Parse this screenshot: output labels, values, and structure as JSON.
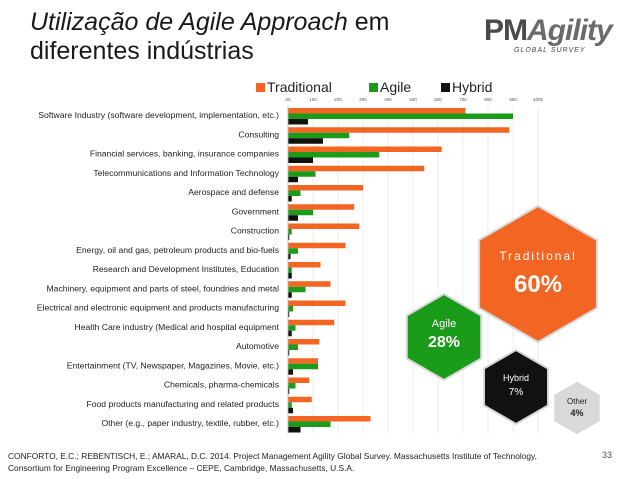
{
  "slide": {
    "title_italic": "Utilização de Agile Approach",
    "title_rest_line1": " em",
    "title_line2": "diferentes indústrias",
    "logo_pm": "PM",
    "logo_agility": "Agility",
    "logo_sub": "GLOBAL SURVEY",
    "footer_line1": "CONFORTO, E.C.; REBENTISCH, E.; AMARAL, D.C. 2014. Project Management Agility Global Survey. Massachusetts Institute of Technology,",
    "footer_line2": "Consortium for Engineering Program Excellence – CEPE, Cambridge, Massachusetts, U.S.A.",
    "page_number": "33"
  },
  "chart_data": [
    {
      "type": "bar",
      "orientation": "horizontal",
      "categories": [
        "Software Industry (software development, implementation, etc.)",
        "Consulting",
        "Financial services, banking, insurance companies",
        "Telecommunications and Information Technology",
        "Aerospace and defense",
        "Government",
        "Construction",
        "Energy, oil and gas, petroleum products and bio-fuels",
        "Research and Development Institutes, Education",
        "Machinery, equipment and parts of steel, foundries and metal",
        "Electrical and electronic equipment and products manufacturing",
        "Health Care industry (Medical and hospital equipment",
        "Automotive",
        "Entertainment (TV, Newspaper, Magazines, Movie, etc.)",
        "Chemicals, pharma-chemicals",
        "Food products manufacturing and related products",
        "Other (e.g., paper industry, textile, rubber, etc.)"
      ],
      "series": [
        {
          "name": "Traditional",
          "color": "#f26522",
          "values": [
            710,
            885,
            615,
            545,
            300,
            265,
            285,
            230,
            130,
            170,
            230,
            185,
            125,
            120,
            85,
            95,
            330
          ]
        },
        {
          "name": "Agile",
          "color": "#1a9b1a",
          "values": [
            900,
            245,
            365,
            110,
            50,
            100,
            15,
            40,
            15,
            70,
            20,
            30,
            40,
            120,
            30,
            15,
            170
          ]
        },
        {
          "name": "Hybrid",
          "color": "#111111",
          "values": [
            80,
            140,
            100,
            40,
            15,
            40,
            5,
            10,
            15,
            15,
            5,
            15,
            5,
            20,
            5,
            20,
            50
          ]
        }
      ],
      "xlim": [
        0,
        1000
      ],
      "x_ticks": [
        "00",
        "100",
        "200",
        "300",
        "400",
        "500",
        "600",
        "700",
        "800",
        "900",
        "1000"
      ],
      "legend": "top"
    },
    {
      "type": "hexagon-bubbles",
      "items": [
        {
          "label": "Traditional",
          "value": "60%",
          "color": "#f26522"
        },
        {
          "label": "Agile",
          "value": "28%",
          "color": "#1a9b1a"
        },
        {
          "label": "Hybrid",
          "value": "7%",
          "color": "#111111"
        },
        {
          "label": "Other",
          "value": "4%",
          "color": "#d9d9d9"
        }
      ]
    }
  ]
}
